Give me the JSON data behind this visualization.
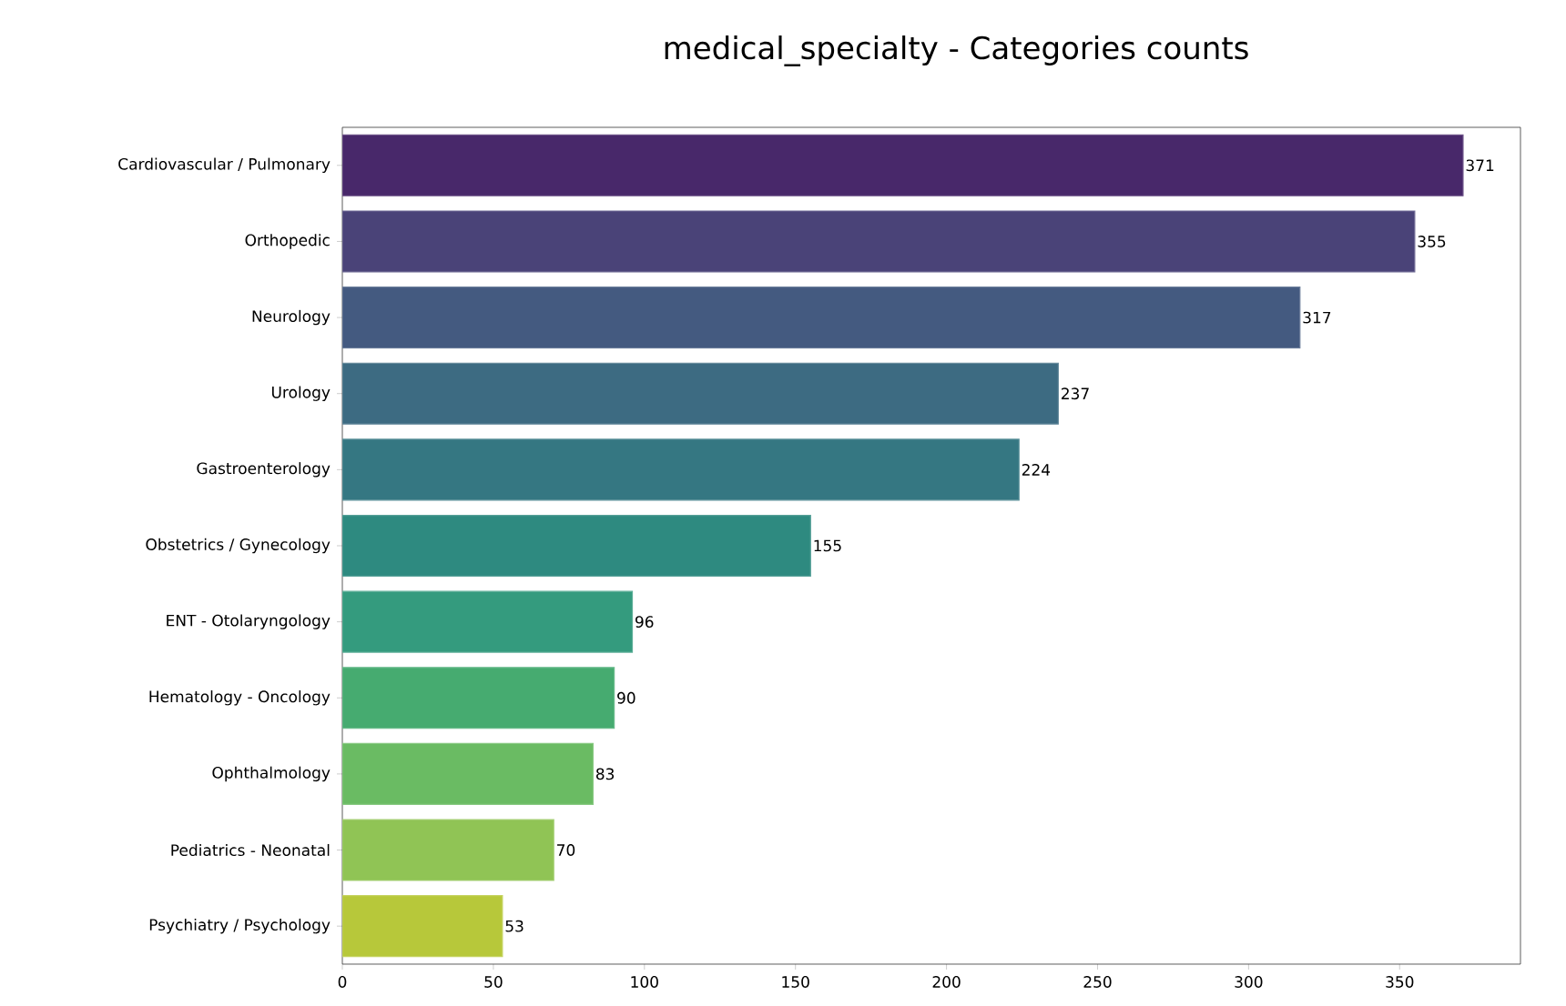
{
  "chart_data": {
    "type": "bar",
    "orientation": "horizontal",
    "title": "medical_specialty - Categories counts",
    "categories": [
      "Cardiovascular / Pulmonary",
      "Orthopedic",
      "Neurology",
      "Urology",
      "Gastroenterology",
      "Obstetrics / Gynecology",
      "ENT - Otolaryngology",
      "Hematology - Oncology",
      "Ophthalmology",
      "Pediatrics - Neonatal",
      "Psychiatry / Psychology"
    ],
    "values": [
      371,
      355,
      317,
      237,
      224,
      155,
      96,
      90,
      83,
      70,
      53
    ],
    "colors": [
      "#48286a",
      "#4a4378",
      "#445a80",
      "#3d6b82",
      "#357782",
      "#2e8a80",
      "#349b7e",
      "#46ab70",
      "#6abb63",
      "#90c455",
      "#b7c83a"
    ],
    "xlim": [
      0,
      390
    ],
    "xticks": [
      0,
      50,
      100,
      150,
      200,
      250,
      300,
      350
    ],
    "data_labels": true
  }
}
